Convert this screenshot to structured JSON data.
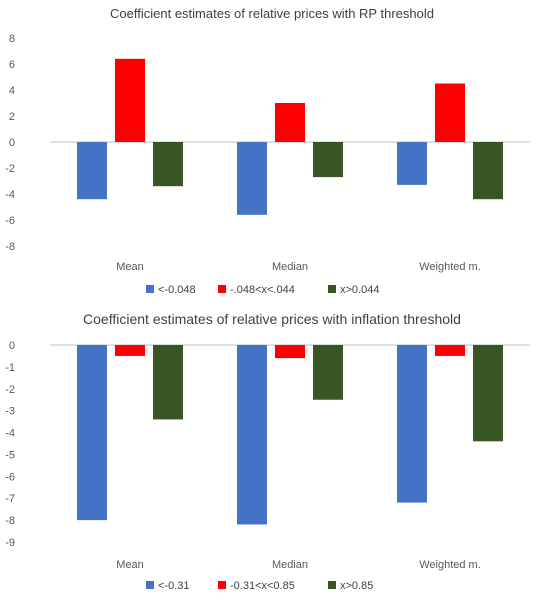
{
  "chart_data": [
    {
      "type": "bar",
      "title": "Coefficient estimates of relative prices with RP threshold",
      "categories": [
        "Mean",
        "Median",
        "Weighted m."
      ],
      "series": [
        {
          "name": "<-0.048",
          "values": [
            -4.4,
            -5.6,
            -3.3
          ]
        },
        {
          "name": "-.048<x<.044",
          "values": [
            6.4,
            3.0,
            4.5
          ]
        },
        {
          "name": "x>0.044",
          "values": [
            -3.4,
            -2.7,
            -4.4
          ]
        }
      ],
      "colors": [
        "#4472c4",
        "#ff0000",
        "#375623"
      ],
      "ylim": [
        -8,
        8
      ],
      "yticks": [
        "8",
        "6",
        "4",
        "2",
        "0",
        "-2",
        "-4",
        "-6",
        "-8"
      ],
      "grid": false,
      "legend": "bottom"
    },
    {
      "type": "bar",
      "title": "Coefficient estimates of relative prices with inflation threshold",
      "categories": [
        "Mean",
        "Median",
        "Weighted m."
      ],
      "series": [
        {
          "name": "<-0.31",
          "values": [
            -8.0,
            -8.2,
            -7.2
          ]
        },
        {
          "name": "-0.31<x<0.85",
          "values": [
            -0.5,
            -0.6,
            -0.5
          ]
        },
        {
          "name": "x>0.85",
          "values": [
            -3.4,
            -2.5,
            -4.4
          ]
        }
      ],
      "colors": [
        "#4472c4",
        "#ff0000",
        "#375623"
      ],
      "ylim": [
        -9,
        0
      ],
      "yticks": [
        "0",
        "-1",
        "-2",
        "-3",
        "-4",
        "-5",
        "-6",
        "-7",
        "-8",
        "-9"
      ],
      "grid": false,
      "legend": "bottom"
    }
  ]
}
